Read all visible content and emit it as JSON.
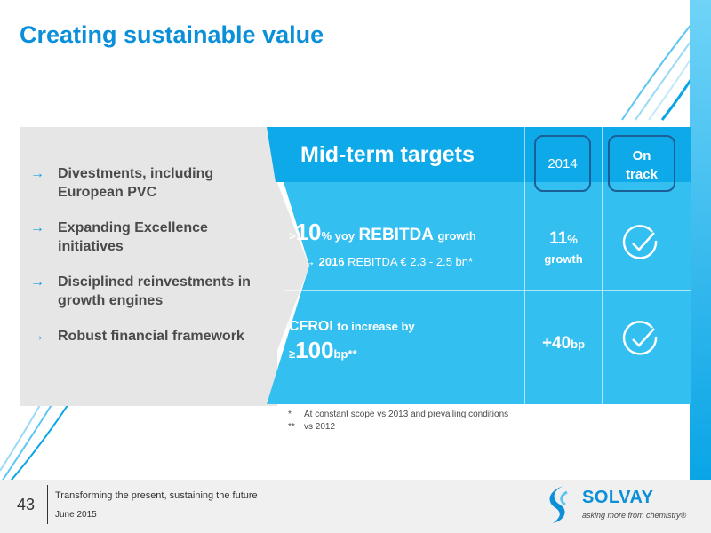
{
  "slide": {
    "title": "Creating sustainable value"
  },
  "left_panel": {
    "bullets": [
      {
        "arrow": "→",
        "text": "Divestments, including European PVC"
      },
      {
        "arrow": "→",
        "text": "Expanding Excellence initiatives"
      },
      {
        "arrow": "→",
        "text": "Disciplined reinvestments in growth engines"
      },
      {
        "arrow": "→",
        "text": "Robust financial framework"
      }
    ]
  },
  "targets": {
    "header": "Mid-term targets",
    "year_label": "2014",
    "track_label_1": "On",
    "track_label_2": "track",
    "row1": {
      "prefix": ">",
      "number": "10",
      "unit": "% yoy",
      "metric": "REBITDA",
      "suffix": "growth",
      "sub_arrow": "→",
      "sub_year": "2016",
      "sub_text": "REBITDA  € 2.3 - 2.5 bn*",
      "value_number": "11",
      "value_unit": "%",
      "value_label": "growth"
    },
    "row2": {
      "metric": "CFROI",
      "text": "to increase by",
      "prefix": "≥",
      "number": "100",
      "unit": "bp",
      "marks": "**",
      "value_number": "+40",
      "value_unit": "bp"
    }
  },
  "footnotes": [
    {
      "mark": "*",
      "text": "At constant scope vs 2013 and prevailing conditions"
    },
    {
      "mark": "**",
      "text": "vs 2012"
    }
  ],
  "footer": {
    "page_number": "43",
    "tagline": "Transforming the present, sustaining the future",
    "date": "June 2015",
    "logo_name": "SOLVAY",
    "logo_tagline": "asking more from chemistry®"
  },
  "colors": {
    "brand_blue": "#0a8fd8",
    "panel_blue": "#33bff0",
    "panel_grey": "#e6e6e6"
  }
}
